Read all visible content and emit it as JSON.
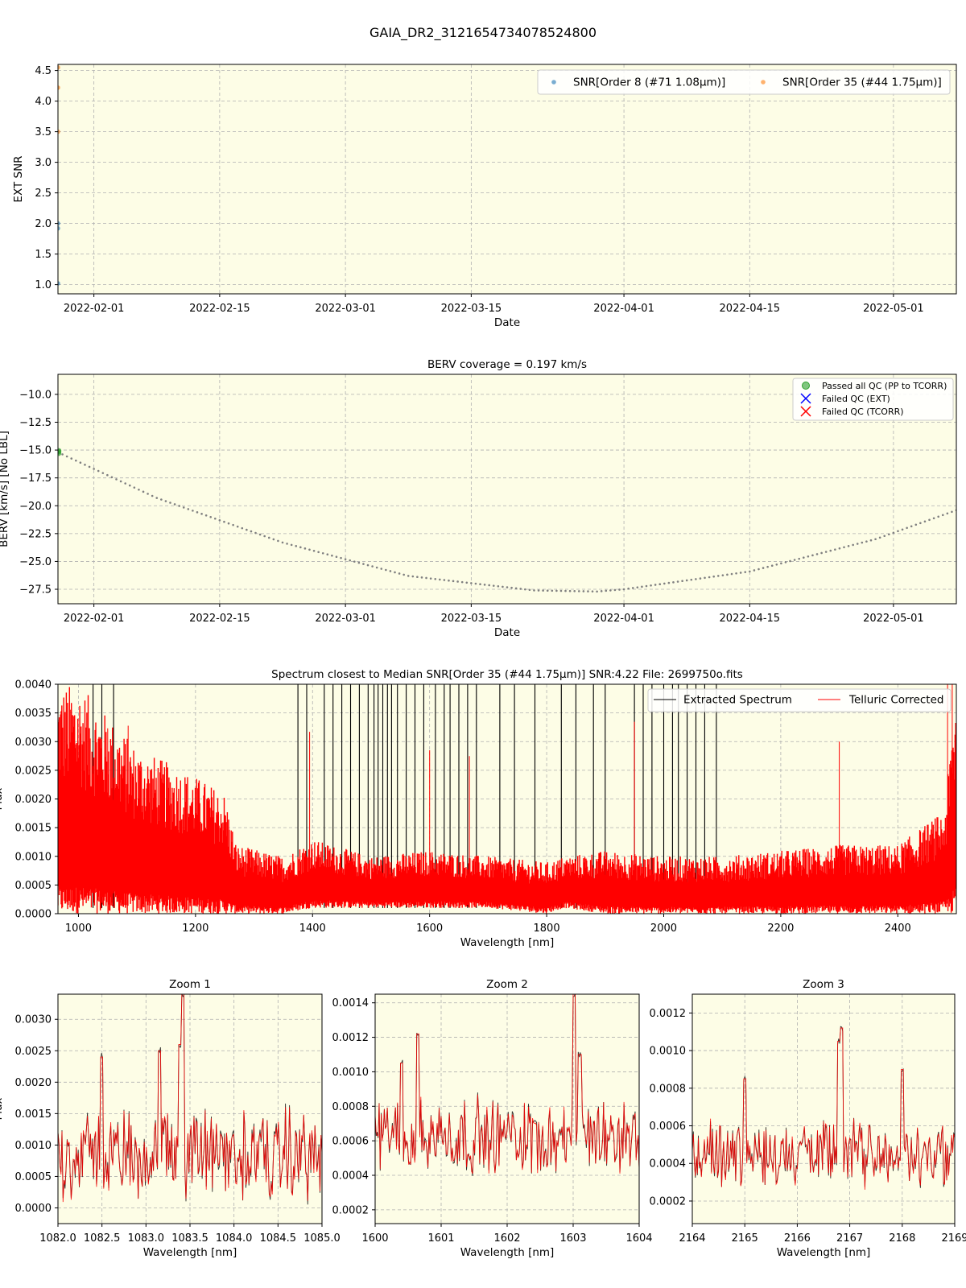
{
  "figure_title": "GAIA_DR2_3121654734078524800",
  "colors": {
    "panel_bg": "#fdfde6",
    "snr_order8": "#1f77b4",
    "snr_order35": "#ff7f0e",
    "berv_curve": "#808080",
    "passed_qc": "#2ca02c",
    "failed_ext": "#0000ff",
    "failed_tcorr": "#ff0000",
    "extracted": "#000000",
    "telluric": "#ff0000"
  },
  "chart_data": [
    {
      "id": "snr",
      "type": "scatter",
      "title": "",
      "xlabel": "Date",
      "ylabel": "EXT SNR",
      "x_is_date": true,
      "xlim": [
        "2022-01-28",
        "2022-05-08"
      ],
      "ylim": [
        0.85,
        4.6
      ],
      "xticks": [
        "2022-02-01",
        "2022-02-15",
        "2022-03-01",
        "2022-03-15",
        "2022-04-01",
        "2022-04-15",
        "2022-05-01"
      ],
      "yticks": [
        "1.0",
        "1.5",
        "2.0",
        "2.5",
        "3.0",
        "3.5",
        "4.0",
        "4.5"
      ],
      "grid": true,
      "legend": "top-right",
      "series": [
        {
          "name": "SNR[Order 8 (#71 1.08μm)]",
          "x": [
            "2022-01-28",
            "2022-01-28",
            "2022-01-28"
          ],
          "y": [
            1.02,
            1.92,
            2.0
          ]
        },
        {
          "name": "SNR[Order 35 (#44 1.75μm)]",
          "x": [
            "2022-01-28",
            "2022-01-28",
            "2022-01-28"
          ],
          "y": [
            3.5,
            4.22,
            4.55
          ]
        }
      ]
    },
    {
      "id": "berv",
      "type": "scatter",
      "title": "BERV coverage = 0.197 km/s",
      "xlabel": "Date",
      "ylabel": "BERV [km/s]  [No LBL]",
      "x_is_date": true,
      "xlim": [
        "2022-01-28",
        "2022-05-08"
      ],
      "ylim": [
        -28.8,
        -8.2
      ],
      "xticks": [
        "2022-02-01",
        "2022-02-15",
        "2022-03-01",
        "2022-03-15",
        "2022-04-01",
        "2022-04-15",
        "2022-05-01"
      ],
      "yticks": [
        "−10.0",
        "−12.5",
        "−15.0",
        "−17.5",
        "−20.0",
        "−22.5",
        "−25.0",
        "−27.5"
      ],
      "grid": true,
      "legend": "top-right",
      "legend_entries": [
        "Passed all QC (PP to TCORR)",
        "Failed QC (EXT)",
        "Failed QC (TCORR)"
      ],
      "curve": {
        "x": [
          "2022-01-28",
          "2022-02-08",
          "2022-02-22",
          "2022-03-08",
          "2022-03-22",
          "2022-03-29",
          "2022-04-01",
          "2022-04-15",
          "2022-04-29",
          "2022-05-08"
        ],
        "y": [
          -15.2,
          -19.3,
          -23.3,
          -26.3,
          -27.6,
          -27.7,
          -27.5,
          -25.9,
          -23.0,
          -20.4
        ]
      },
      "passed": {
        "x": [
          "2022-01-28",
          "2022-01-28",
          "2022-01-28"
        ],
        "y": [
          -15.05,
          -15.15,
          -15.3
        ]
      }
    },
    {
      "id": "spectrum",
      "type": "line",
      "title": "Spectrum closest to Median SNR[Order 35 (#44 1.75μm)]     SNR:4.22     File: 2699750o.fits",
      "xlabel": "Wavelength [nm]",
      "ylabel": "Flux",
      "xlim": [
        965,
        2500
      ],
      "ylim": [
        0,
        0.004
      ],
      "xticks": [
        "1000",
        "1200",
        "1400",
        "1600",
        "1800",
        "2000",
        "2200",
        "2400"
      ],
      "yticks": [
        "0.0000",
        "0.0005",
        "0.0010",
        "0.0015",
        "0.0020",
        "0.0025",
        "0.0030",
        "0.0035",
        "0.0040"
      ],
      "grid": true,
      "legend": "top-right",
      "series": [
        {
          "name": "Extracted Spectrum"
        },
        {
          "name": "Telluric Corrected"
        }
      ],
      "envelope": {
        "x": [
          965,
          1000,
          1100,
          1200,
          1250,
          1270,
          1350,
          1400,
          1500,
          1600,
          1700,
          1800,
          1830,
          1900,
          2000,
          2100,
          2200,
          2300,
          2400,
          2480,
          2500
        ],
        "low": [
          0.0,
          0.0,
          0.0,
          0.0,
          0.0,
          0.0,
          0.0,
          0.0001,
          0.0001,
          0.0001,
          0.0001,
          0.0,
          0.0001,
          0.0,
          0.0,
          0.0,
          0.0,
          0.0,
          0.0,
          0.0,
          0.0
        ],
        "high": [
          0.004,
          0.004,
          0.0029,
          0.0024,
          0.0021,
          0.0012,
          0.001,
          0.0013,
          0.001,
          0.0011,
          0.001,
          0.0009,
          0.001,
          0.0011,
          0.001,
          0.001,
          0.0011,
          0.0012,
          0.0012,
          0.0018,
          0.004
        ]
      },
      "black_spikes_x": [
        1025,
        1040,
        1060,
        1375,
        1390,
        1420,
        1435,
        1450,
        1465,
        1480,
        1495,
        1505,
        1512,
        1520,
        1528,
        1535,
        1545,
        1560,
        1575,
        1590,
        1610,
        1625,
        1635,
        1650,
        1665,
        1680,
        1720,
        1745,
        1780,
        1825,
        1850,
        1880,
        1900,
        1950,
        1965,
        1980,
        2000,
        2015,
        2025,
        2040,
        2055,
        2070,
        2090
      ]
    },
    {
      "id": "zoom1",
      "type": "line",
      "title": "Zoom 1",
      "xlabel": "Wavelength [nm]",
      "ylabel": "Flux",
      "xlim": [
        1082.0,
        1085.0
      ],
      "ylim": [
        -0.00025,
        0.0034
      ],
      "xticks": [
        "1082.0",
        "1082.5",
        "1083.0",
        "1083.5",
        "1084.0",
        "1084.5",
        "1085.0"
      ],
      "yticks": [
        "0.0000",
        "0.0005",
        "0.0010",
        "0.0015",
        "0.0020",
        "0.0025",
        "0.0030"
      ],
      "grid": true,
      "baseline": 0.00085,
      "amplitude": 0.00055,
      "spikes": [
        {
          "x": 1083.42,
          "y": 0.0034
        },
        {
          "x": 1083.38,
          "y": 0.0026
        },
        {
          "x": 1082.5,
          "y": 0.0024
        },
        {
          "x": 1083.15,
          "y": 0.0025
        }
      ]
    },
    {
      "id": "zoom2",
      "type": "line",
      "title": "Zoom 2",
      "xlabel": "Wavelength [nm]",
      "ylabel": "",
      "xlim": [
        1600,
        1604
      ],
      "ylim": [
        0.00012,
        0.00145
      ],
      "xticks": [
        "1600",
        "1601",
        "1602",
        "1603",
        "1604"
      ],
      "yticks": [
        "0.0002",
        "0.0004",
        "0.0006",
        "0.0008",
        "0.0010",
        "0.0012",
        "0.0014"
      ],
      "grid": true,
      "baseline": 0.00063,
      "amplitude": 0.00017,
      "spikes": [
        {
          "x": 1603.02,
          "y": 0.00145
        },
        {
          "x": 1600.65,
          "y": 0.00122
        },
        {
          "x": 1603.1,
          "y": 0.0011
        },
        {
          "x": 1600.4,
          "y": 0.00105
        }
      ]
    },
    {
      "id": "zoom3",
      "type": "line",
      "title": "Zoom 3",
      "xlabel": "Wavelength [nm]",
      "ylabel": "",
      "xlim": [
        2164,
        2169
      ],
      "ylim": [
        8e-05,
        0.0013
      ],
      "xticks": [
        "2164",
        "2165",
        "2166",
        "2167",
        "2168",
        "2169"
      ],
      "yticks": [
        "0.0002",
        "0.0004",
        "0.0006",
        "0.0008",
        "0.0010",
        "0.0012"
      ],
      "grid": true,
      "baseline": 0.00045,
      "amplitude": 0.00014,
      "spikes": [
        {
          "x": 2166.85,
          "y": 0.00112
        },
        {
          "x": 2166.78,
          "y": 0.00105
        },
        {
          "x": 2168.0,
          "y": 0.0009
        },
        {
          "x": 2165.0,
          "y": 0.00085
        }
      ]
    }
  ]
}
